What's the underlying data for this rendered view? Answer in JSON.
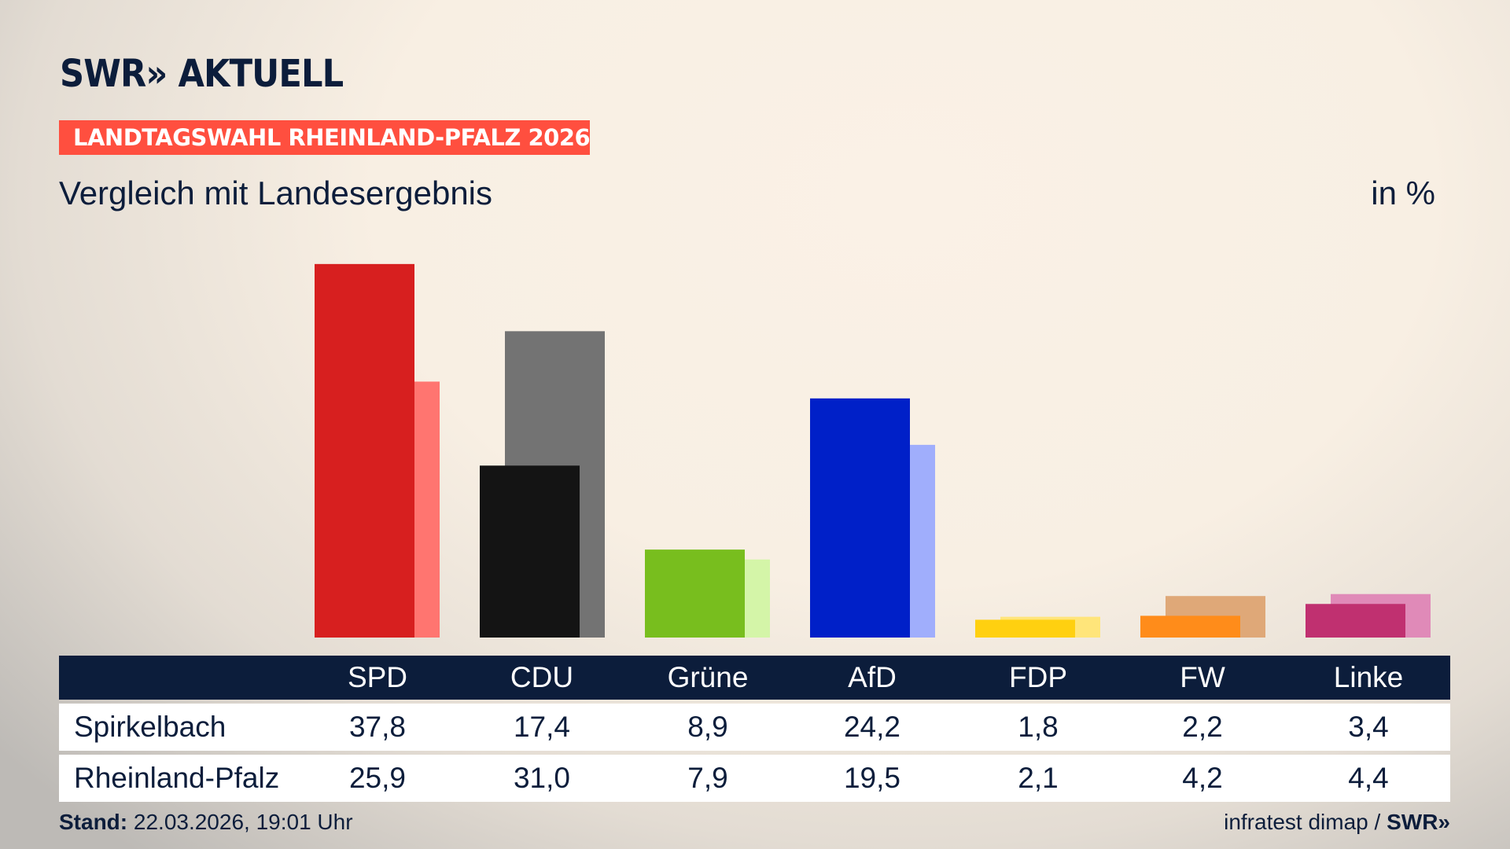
{
  "header": {
    "logo": "SWR» AKTUELL",
    "banner": "LANDTAGSWAHL RHEINLAND-PFALZ 2026",
    "subtitle": "Vergleich mit Landesergebnis",
    "unit": "in %"
  },
  "colors": {
    "navy": "#0c1d3b",
    "banner": "#ff4f3f"
  },
  "chart_data": {
    "type": "bar",
    "categories": [
      "SPD",
      "CDU",
      "Grüne",
      "AfD",
      "FDP",
      "FW",
      "Linke"
    ],
    "series": [
      {
        "name": "Spirkelbach",
        "values": [
          37.8,
          17.4,
          8.9,
          24.2,
          1.8,
          2.2,
          3.4
        ],
        "colors": [
          "#d71f1f",
          "#141414",
          "#78be1e",
          "#0020c8",
          "#ffd010",
          "#ff8c1a",
          "#c03070"
        ]
      },
      {
        "name": "Rheinland-Pfalz",
        "values": [
          25.9,
          31.0,
          7.9,
          19.5,
          2.1,
          4.2,
          4.4
        ],
        "colors": [
          "#ff7570",
          "#737373",
          "#d4f5a8",
          "#a0aefc",
          "#ffe57a",
          "#dfa878",
          "#e08ab8"
        ]
      }
    ],
    "ylim": [
      0,
      40
    ]
  },
  "table": {
    "headers": [
      "SPD",
      "CDU",
      "Grüne",
      "AfD",
      "FDP",
      "FW",
      "Linke"
    ],
    "rows": [
      {
        "label": "Spirkelbach",
        "values": [
          "37,8",
          "17,4",
          "8,9",
          "24,2",
          "1,8",
          "2,2",
          "3,4"
        ]
      },
      {
        "label": "Rheinland-Pfalz",
        "values": [
          "25,9",
          "31,0",
          "7,9",
          "19,5",
          "2,1",
          "4,2",
          "4,4"
        ]
      }
    ]
  },
  "footer": {
    "stand_label": "Stand:",
    "stand_value": " 22.03.2026, 19:01 Uhr",
    "source": "infratest dimap / ",
    "source_logo": "SWR»"
  }
}
